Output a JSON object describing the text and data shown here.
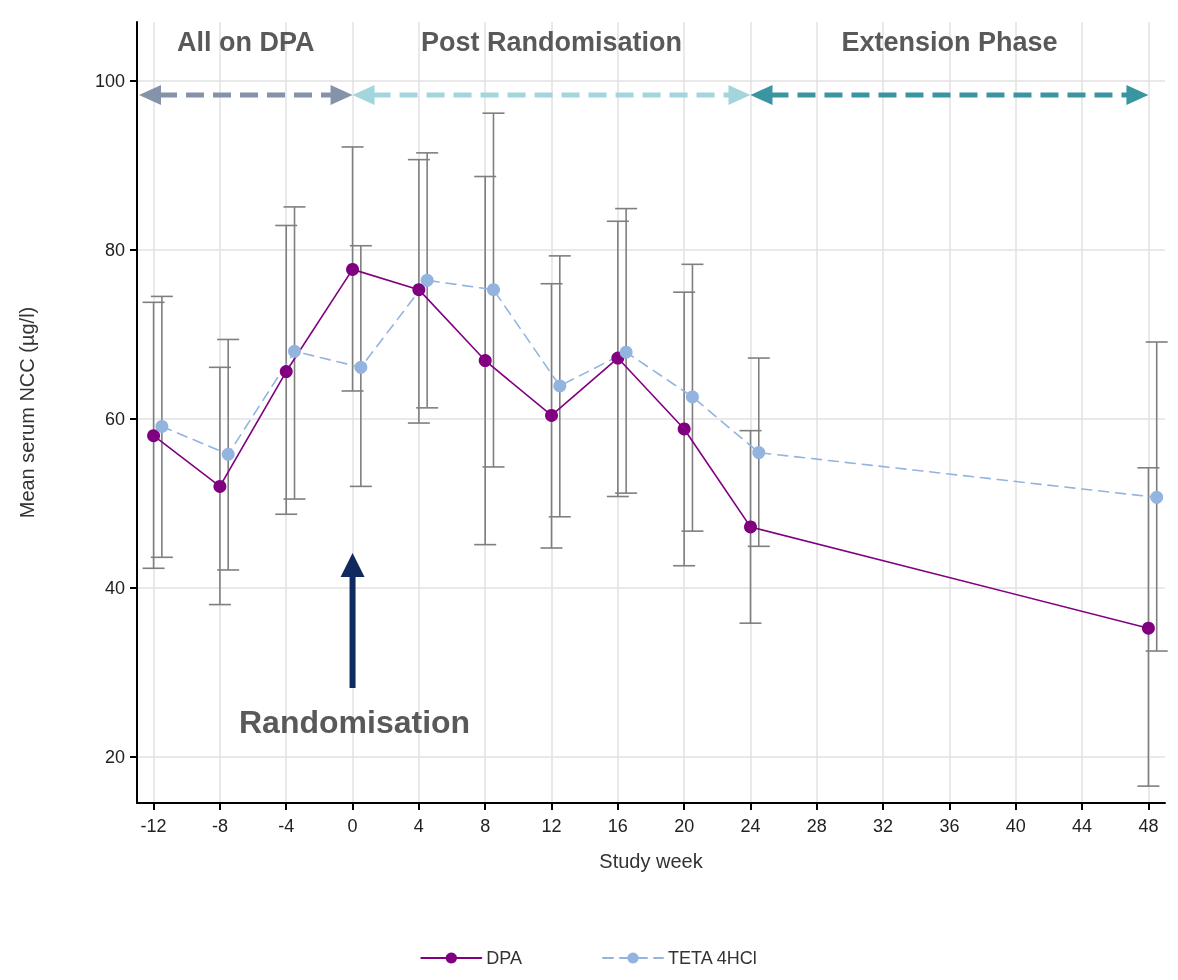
{
  "chart_data": {
    "type": "line",
    "xlabel": "Study week",
    "ylabel": "Mean serum NCC (µg/l)",
    "xlim": [
      -13,
      49
    ],
    "xticks": [
      -12,
      -8,
      -4,
      0,
      4,
      8,
      12,
      16,
      20,
      24,
      28,
      32,
      36,
      40,
      44,
      48
    ],
    "ylim": [
      14.5,
      107
    ],
    "yticks": [
      20,
      40,
      60,
      80,
      100
    ],
    "grid": true,
    "legend": "bottom",
    "marker": "circle",
    "series": [
      {
        "name": "DPA",
        "color": "#800080",
        "line_style": "solid",
        "x": [
          -12,
          -8,
          -4,
          0,
          4,
          8,
          12,
          16,
          20,
          24,
          48
        ],
        "values": [
          58.0,
          52.0,
          65.6,
          77.7,
          75.3,
          66.9,
          60.4,
          67.2,
          58.8,
          47.2,
          35.2
        ],
        "errors": [
          [
            42.3,
            73.8
          ],
          [
            38.0,
            66.1
          ],
          [
            48.7,
            82.9
          ],
          [
            63.3,
            92.2
          ],
          [
            59.5,
            90.7
          ],
          [
            45.1,
            88.7
          ],
          [
            44.7,
            76.0
          ],
          [
            50.8,
            83.4
          ],
          [
            42.6,
            75.0
          ],
          [
            35.8,
            58.6
          ],
          [
            16.5,
            54.2
          ]
        ]
      },
      {
        "name": "TETA 4HCl",
        "color": "#92b4df",
        "line_style": "dashed",
        "x": [
          -11.5,
          -7.5,
          -3.5,
          0.5,
          4.5,
          8.5,
          12.5,
          16.5,
          20.5,
          24.5,
          48.5
        ],
        "values": [
          59.1,
          55.8,
          68.0,
          66.1,
          76.4,
          75.3,
          63.9,
          67.9,
          62.6,
          56.0,
          50.7
        ],
        "errors": [
          [
            43.6,
            74.5
          ],
          [
            42.1,
            69.4
          ],
          [
            50.5,
            85.1
          ],
          [
            52.0,
            80.5
          ],
          [
            61.3,
            91.5
          ],
          [
            54.3,
            96.2
          ],
          [
            48.4,
            79.3
          ],
          [
            51.2,
            84.9
          ],
          [
            46.7,
            78.3
          ],
          [
            44.9,
            67.2
          ],
          [
            32.5,
            69.1
          ]
        ]
      }
    ],
    "annotations": [
      "All on DPA",
      "Post Randomisation",
      "Extension Phase",
      "Randomisation"
    ]
  }
}
